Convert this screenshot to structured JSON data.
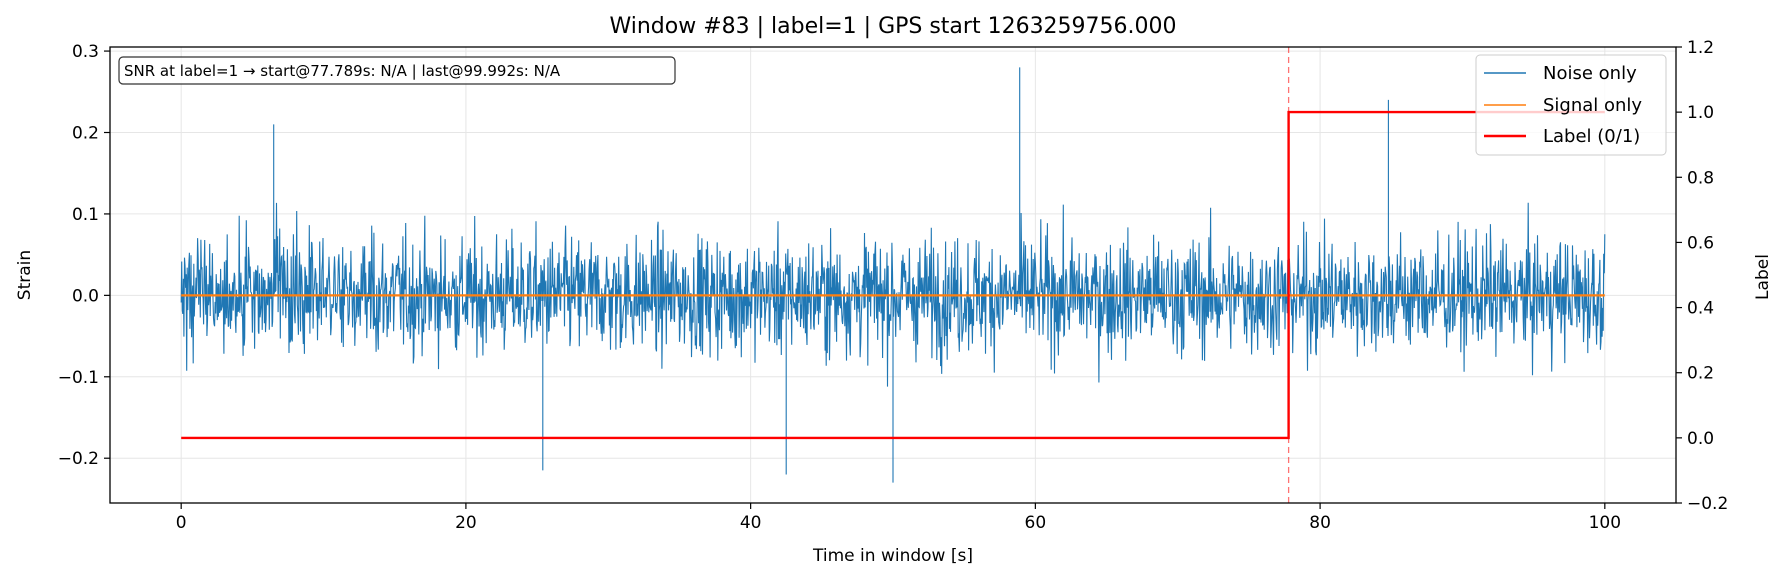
{
  "chart_data": {
    "type": "line",
    "title": "Window #83  |  label=1  |  GPS start 1263259756.000",
    "xlabel": "Time in window [s]",
    "ylabel_left": "Strain",
    "ylabel_right": "Label",
    "xlim": [
      -5,
      105
    ],
    "ylim_left": [
      -0.255,
      0.305
    ],
    "ylim_right": [
      -0.2,
      1.2
    ],
    "xticks": [
      0,
      20,
      40,
      60,
      80,
      100
    ],
    "yticks_left": [
      -0.2,
      -0.1,
      0.0,
      0.1,
      0.2,
      0.3
    ],
    "yticks_right": [
      -0.2,
      0.0,
      0.2,
      0.4,
      0.6,
      0.8,
      1.0,
      1.2
    ],
    "xtick_labels": [
      "0",
      "20",
      "40",
      "60",
      "80",
      "100"
    ],
    "ytick_labels_left": [
      "−0.2",
      "−0.1",
      "0.0",
      "0.1",
      "0.2",
      "0.3"
    ],
    "ytick_labels_right": [
      "−0.2",
      "0.0",
      "0.2",
      "0.4",
      "0.6",
      "0.8",
      "1.0",
      "1.2"
    ],
    "grid": true,
    "legend_position": "top-right",
    "annotation": "SNR at label=1 → start@77.789s: N/A | last@99.992s: N/A",
    "vline_x": 77.789,
    "series": [
      {
        "name": "Noise only",
        "color": "#1f77b4",
        "axis": "left",
        "x_range": [
          0,
          100
        ],
        "typical_amplitude": 0.1,
        "max": 0.28,
        "min": -0.23,
        "peaks": [
          {
            "x": 58.9,
            "y": 0.28
          },
          {
            "x": 6.5,
            "y": 0.21
          },
          {
            "x": 84.8,
            "y": 0.24
          },
          {
            "x": 50.0,
            "y": -0.23
          },
          {
            "x": 25.4,
            "y": -0.215
          },
          {
            "x": 42.5,
            "y": -0.22
          }
        ]
      },
      {
        "name": "Signal only",
        "color": "#ff7f0e",
        "axis": "left",
        "x_range": [
          0,
          100
        ],
        "value": 0.0
      },
      {
        "name": "Label (0/1)",
        "color": "#ff0000",
        "axis": "right",
        "x": [
          0,
          77.789,
          77.789,
          100
        ],
        "y": [
          0,
          0,
          1,
          1
        ]
      }
    ]
  }
}
